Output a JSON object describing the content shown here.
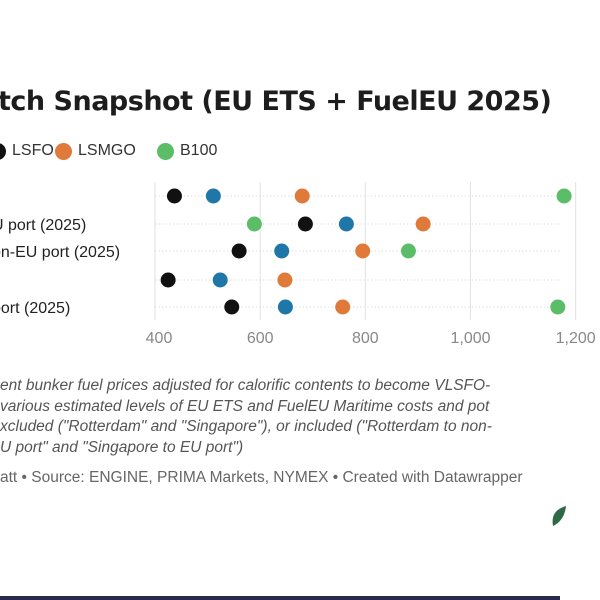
{
  "title": "tch Snapshot (EU ETS + FuelEU 2025)",
  "legend": [
    {
      "label": "LSFO",
      "color": "#111111"
    },
    {
      "label": "LSMGO",
      "color": "#e07a3b"
    },
    {
      "label": "B100",
      "color": "#5cbd68"
    }
  ],
  "notes": [
    "ent bunker fuel prices adjusted for calorific contents to become VLSFO-",
    " various estimated levels of EU ETS and FuelEU Maritime costs and pot",
    "xcluded (\"Rotterdam\" and \"Singapore\"), or included (\"Rotterdam to non-",
    "U port\" and \"Singapore to EU port\")"
  ],
  "source": "att • Source: ENGINE, PRIMA Markets, NYMEX • Created with Datawrapper",
  "chart_data": {
    "type": "scatter",
    "xlim": [
      400,
      1260
    ],
    "x_ticks": [
      "400",
      "600",
      "800",
      "1,000",
      "1,200"
    ],
    "grid": true,
    "categories": [
      "",
      "U port (2025)",
      "on-EU port (2025)",
      "",
      " port (2025)"
    ],
    "series": [
      {
        "name": "",
        "color": "#111111",
        "values": [
          437,
          686,
          560,
          425,
          546
        ]
      },
      {
        "name": "",
        "color": "#1f77a8",
        "values": [
          511,
          764,
          641,
          524,
          648
        ]
      },
      {
        "name": "",
        "color": "#e07a3b",
        "values": [
          680,
          910,
          795,
          647,
          757
        ]
      },
      {
        "name": "",
        "color": "#5cbd68",
        "values": [
          1178,
          589,
          882,
          null,
          1166
        ]
      }
    ]
  }
}
